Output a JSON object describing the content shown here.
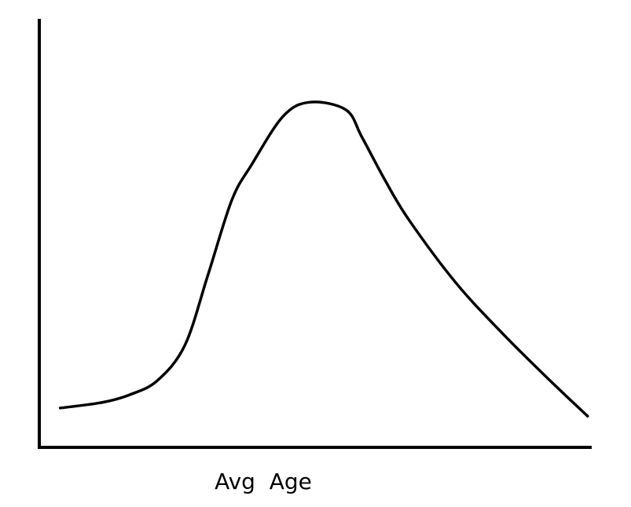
{
  "chart_data": {
    "type": "line",
    "xlabel": "Avg  Age",
    "x": [
      3.8,
      11.4,
      16.4,
      21.4,
      26.4,
      30.6,
      34.9,
      38.5,
      44.2,
      49.1,
      55.6,
      58.5,
      62.7,
      67,
      75.5,
      84,
      92.6,
      99.4
    ],
    "values": [
      9.2,
      10.5,
      12.3,
      15.6,
      23.9,
      40.4,
      57.8,
      66.1,
      77.4,
      80.7,
      78.9,
      72.5,
      62.4,
      53.2,
      38.5,
      26.6,
      15.6,
      7.3
    ],
    "color": "#000000",
    "xlim": [
      0,
      100
    ],
    "ylim": [
      0,
      100
    ]
  }
}
